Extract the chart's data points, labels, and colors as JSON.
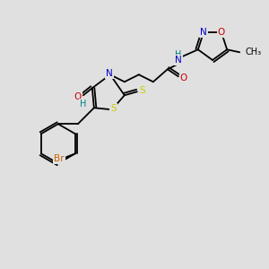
{
  "background_color": "#e0e0e0",
  "atom_colors": {
    "N": "#0000cc",
    "O": "#cc0000",
    "S": "#cccc00",
    "Br": "#cc6600",
    "H": "#008080",
    "C": "#000000",
    "bond": "#000000"
  },
  "font_size": 7.5,
  "line_width": 1.3
}
